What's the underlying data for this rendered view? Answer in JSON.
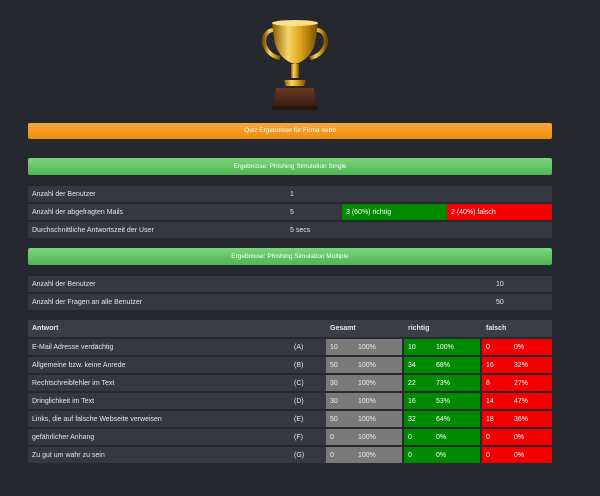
{
  "header_bar": "Quiz Ergebnisse für Firma oebb",
  "single": {
    "title": "Ergebnisse: Phishing Simulation Single",
    "rows": [
      {
        "label": "Anzahl der Benutzer",
        "value": "1"
      },
      {
        "label": "Anzahl der abgefragten Mails",
        "value": "5",
        "right": "3 (60%) richtig",
        "wrong": "2 (40%) falsch"
      },
      {
        "label": "Durchschnittliche Antwortszeit der User",
        "value": "5 secs"
      }
    ]
  },
  "multiple": {
    "title": "Ergebnisse: Phishing Simulation Multiple",
    "rows": [
      {
        "label": "Anzahl der Benutzer",
        "value": "10"
      },
      {
        "label": "Anzahl der Fragen an alle Benutzer",
        "value": "50"
      }
    ]
  },
  "answers": {
    "headers": {
      "answer": "Antwort",
      "total": "Gesamt",
      "right": "richtig",
      "wrong": "falsch"
    },
    "rows": [
      {
        "label": "E-Mail Adresse verdächtig",
        "key": "(A)",
        "total": "10",
        "total_pct": "100%",
        "right": "10",
        "right_pct": "100%",
        "wrong": "0",
        "wrong_pct": "0%"
      },
      {
        "label": "Allgemeine bzw. keine Anrede",
        "key": "(B)",
        "total": "50",
        "total_pct": "100%",
        "right": "34",
        "right_pct": "68%",
        "wrong": "16",
        "wrong_pct": "32%"
      },
      {
        "label": "Rechtschreibfehler im Text",
        "key": "(C)",
        "total": "30",
        "total_pct": "100%",
        "right": "22",
        "right_pct": "73%",
        "wrong": "8",
        "wrong_pct": "27%"
      },
      {
        "label": "Dringlichkeit im Text",
        "key": "(D)",
        "total": "30",
        "total_pct": "100%",
        "right": "16",
        "right_pct": "53%",
        "wrong": "14",
        "wrong_pct": "47%"
      },
      {
        "label": "Links, die auf falsche Webseite verweisen",
        "key": "(E)",
        "total": "50",
        "total_pct": "100%",
        "right": "32",
        "right_pct": "64%",
        "wrong": "18",
        "wrong_pct": "36%"
      },
      {
        "label": "gefährlicher Anhang",
        "key": "(F)",
        "total": "0",
        "total_pct": "100%",
        "right": "0",
        "right_pct": "0%",
        "wrong": "0",
        "wrong_pct": "0%"
      },
      {
        "label": "Zu gut um wahr zu sein",
        "key": "(G)",
        "total": "0",
        "total_pct": "100%",
        "right": "0",
        "right_pct": "0%",
        "wrong": "0",
        "wrong_pct": "0%"
      }
    ]
  },
  "icons": {
    "trophy": "trophy-icon"
  },
  "colors": {
    "orange": "#f39a1e",
    "green": "#5fc462",
    "right": "#008a00",
    "wrong": "#f20000",
    "neutral": "#7a7a7a"
  }
}
